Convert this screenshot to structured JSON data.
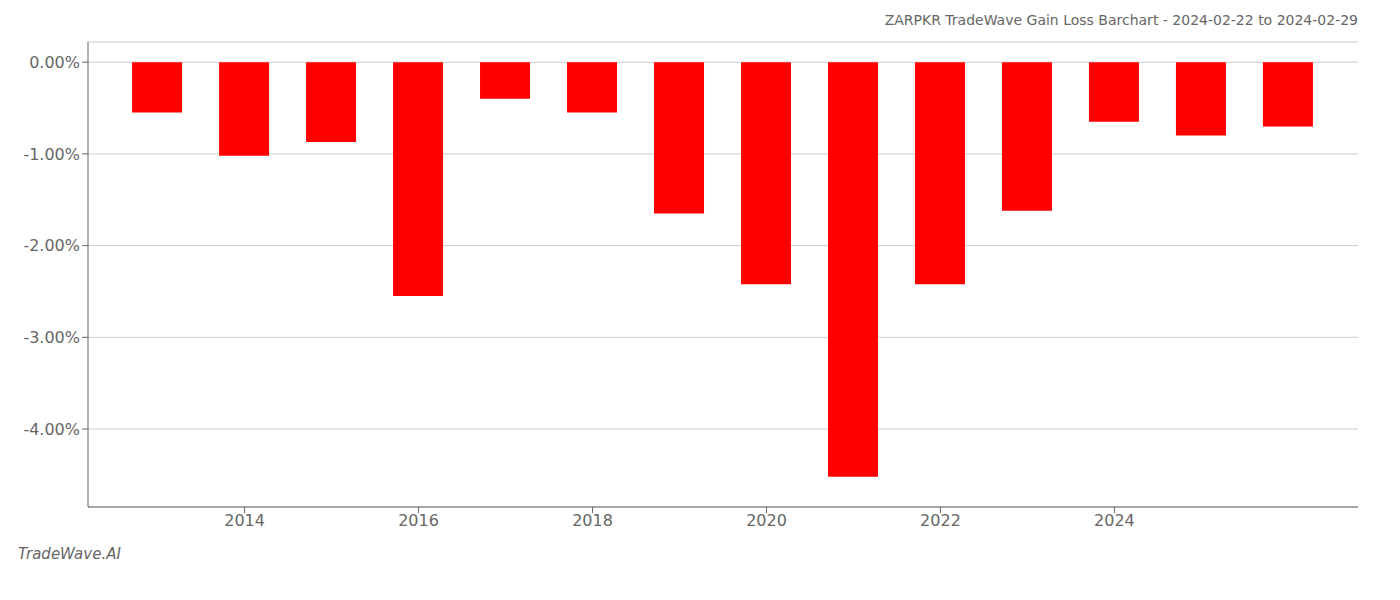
{
  "chart_data": {
    "type": "bar",
    "title": "ZARPKR TradeWave Gain Loss Barchart - 2024-02-22 to 2024-02-29",
    "annotation": "TradeWave.AI",
    "x": [
      2013,
      2014,
      2015,
      2016,
      2017,
      2018,
      2019,
      2020,
      2021,
      2022,
      2023,
      2024,
      2025,
      2026
    ],
    "values": [
      -0.55,
      -1.02,
      -0.87,
      -2.55,
      -0.4,
      -0.55,
      -1.65,
      -2.42,
      -4.52,
      -2.42,
      -1.62,
      -0.65,
      -0.8,
      -0.7
    ],
    "color": "#ff0000",
    "xlim": [
      2012.2,
      2026.8
    ],
    "xticks": [
      2014,
      2016,
      2018,
      2020,
      2022,
      2024
    ],
    "ylim": [
      -4.85,
      0.22
    ],
    "yticks": [
      {
        "value": 0.0,
        "label": "0.00%"
      },
      {
        "value": -1.0,
        "label": "-1.00%"
      },
      {
        "value": -2.0,
        "label": "-2.00%"
      },
      {
        "value": -3.0,
        "label": "-3.00%"
      },
      {
        "value": -4.0,
        "label": "-4.00%"
      }
    ],
    "grid": true
  }
}
